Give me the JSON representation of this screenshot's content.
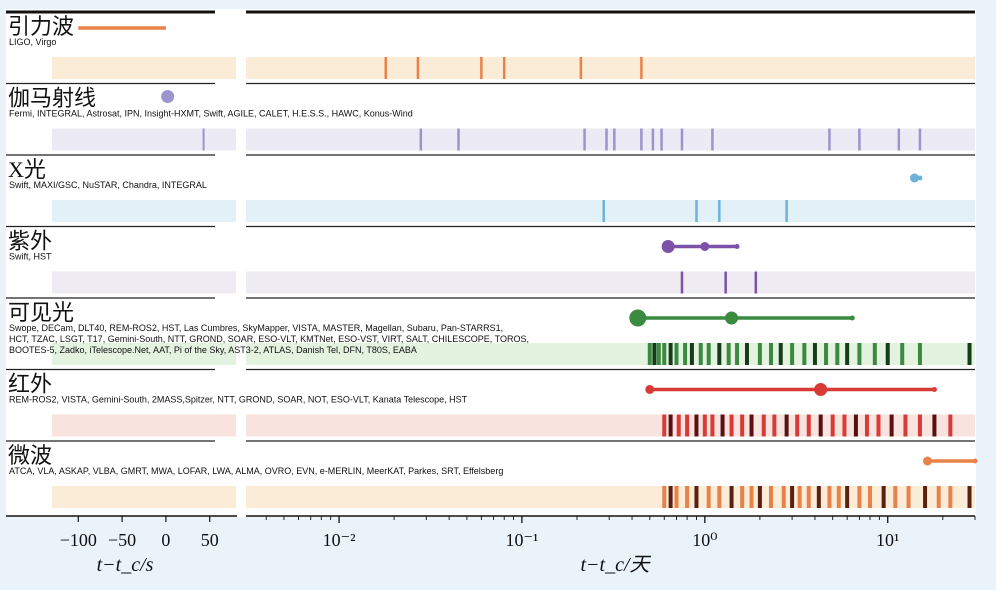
{
  "chart_data": {
    "type": "timeline",
    "title": "",
    "left_axis": {
      "label": "t−t_c/s",
      "ticks": [
        -100,
        -50,
        0,
        50
      ],
      "range": [
        -130,
        80
      ]
    },
    "right_axis": {
      "label": "t−t_c/天",
      "scale": "log",
      "range": [
        0.0031,
        30
      ],
      "ticks": [
        {
          "v": 0.01,
          "t": "10⁻²"
        },
        {
          "v": 0.1,
          "t": "10⁻¹"
        },
        {
          "v": 1,
          "t": "10⁰"
        },
        {
          "v": 10,
          "t": "10¹"
        }
      ]
    },
    "bands": [
      {
        "name": "引力波",
        "instruments": [
          "LIGO, Virgo"
        ],
        "color": "#e8824a",
        "bg": "#fbecd8",
        "left_range": [
          -100,
          0
        ],
        "left_dots": [],
        "left_obs": [],
        "range": [],
        "dots": [],
        "obs": [
          0.018,
          0.027,
          0.06,
          0.08,
          0.21,
          0.45
        ]
      },
      {
        "name": "伽马射线",
        "instruments": [
          "Fermi, INTEGRAL, Astrosat, IPN, Insight-HXMT, Swift, AGILE, CALET, H.E.S.S., HAWC, Konus-Wind"
        ],
        "color": "#9b95cc",
        "bg": "#ecebf5",
        "left_range": [],
        "left_dots": [
          [
            2,
            "m"
          ]
        ],
        "left_obs": [
          43
        ],
        "range": [],
        "dots": [],
        "obs": [
          0.028,
          0.045,
          0.22,
          0.29,
          0.32,
          0.45,
          0.52,
          0.58,
          0.75,
          1.1,
          4.8,
          7.0,
          11.5,
          15
        ]
      },
      {
        "name": "X光",
        "instruments": [
          "Swift, MAXI/GSC, NuSTAR, Chandra, INTEGRAL"
        ],
        "color": "#6cb2d9",
        "bg": "#e2f0f8",
        "left_range": [],
        "left_dots": [],
        "left_obs": [],
        "range": [
          13.6,
          15
        ],
        "dots": [
          [
            14,
            "s"
          ]
        ],
        "obs": [
          0.28,
          0.9,
          1.2,
          2.8
        ]
      },
      {
        "name": "紫外",
        "instruments": [
          "Swift, HST"
        ],
        "color": "#7c52a8",
        "bg": "#efebf3",
        "left_range": [],
        "left_dots": [],
        "left_obs": [],
        "range": [
          0.62,
          1.5
        ],
        "dots": [
          [
            0.63,
            "m"
          ],
          [
            1.0,
            "s"
          ]
        ],
        "obs": [
          0.75,
          1.3,
          1.9
        ]
      },
      {
        "name": "可见光",
        "instruments": [
          "Swope, DECam, DLT40, REM-ROS2, HST, Las Cumbres, SkyMapper, VISTA, MASTER, Magellan, Subaru, Pan-STARRS1,",
          "HCT, TZAC, LSGT, T17, Gemini-South, NTT, GROND, SOAR, ESO-VLT, KMTNet, ESO-VST, VIRT, SALT, CHILESCOPE, TOROS,",
          "BOOTES-5, Zadko, iTelescope.Net, AAT, Pi of the Sky, AST3-2, ATLAS, Danish Tel, DFN, T80S, EABA"
        ],
        "color": "#3a8a3f",
        "bg": "#e4f2e0",
        "left_range": [],
        "left_dots": [],
        "left_obs": [],
        "range": [
          0.43,
          6.4
        ],
        "dots": [
          [
            0.43,
            "l"
          ],
          [
            1.4,
            "m"
          ]
        ],
        "obs": [
          0.5,
          0.53,
          0.56,
          0.6,
          0.65,
          0.7,
          0.78,
          0.85,
          0.95,
          1.05,
          1.2,
          1.35,
          1.5,
          1.7,
          2.0,
          2.3,
          2.6,
          3.0,
          3.5,
          4.0,
          4.6,
          5.3,
          6.0,
          7.0,
          8.5,
          10,
          12,
          15,
          28
        ]
      },
      {
        "name": "红外",
        "instruments": [
          "REM-ROS2, VISTA, Gemini-South, 2MASS,Spitzer, NTT, GROND, SOAR, NOT, ESO-VLT, Kanata Telescope, HST"
        ],
        "color": "#d83a36",
        "bg": "#f9e3de",
        "left_range": [],
        "left_dots": [],
        "left_obs": [],
        "range": [
          0.5,
          18
        ],
        "dots": [
          [
            0.5,
            "s"
          ],
          [
            4.3,
            "m"
          ]
        ],
        "obs": [
          0.6,
          0.65,
          0.72,
          0.8,
          0.9,
          1.0,
          1.1,
          1.25,
          1.4,
          1.6,
          1.8,
          2.1,
          2.4,
          2.8,
          3.2,
          3.7,
          4.3,
          5.0,
          5.8,
          6.7,
          7.7,
          8.9,
          10.5,
          12.5,
          15,
          18,
          22
        ]
      },
      {
        "name": "微波",
        "instruments": [
          "ATCA, VLA, ASKAP, VLBA, GMRT, MWA, LOFAR, LWA, ALMA, OVRO, EVN, e-MERLIN, MeerKAT, Parkes, SRT, Effelsberg"
        ],
        "color": "#e8824a",
        "bg": "#fbecd8",
        "left_range": [],
        "left_dots": [],
        "left_obs": [],
        "range": [
          16.5,
          30
        ],
        "dots": [
          [
            16.5,
            "s"
          ]
        ],
        "obs": [
          0.6,
          0.65,
          0.7,
          0.8,
          0.9,
          1.05,
          1.2,
          1.4,
          1.6,
          1.8,
          2.0,
          2.3,
          2.7,
          3.0,
          3.3,
          3.7,
          4.2,
          4.8,
          5.4,
          6.0,
          7.0,
          8.0,
          9.5,
          11,
          13,
          16,
          19,
          22,
          28
        ]
      }
    ]
  }
}
